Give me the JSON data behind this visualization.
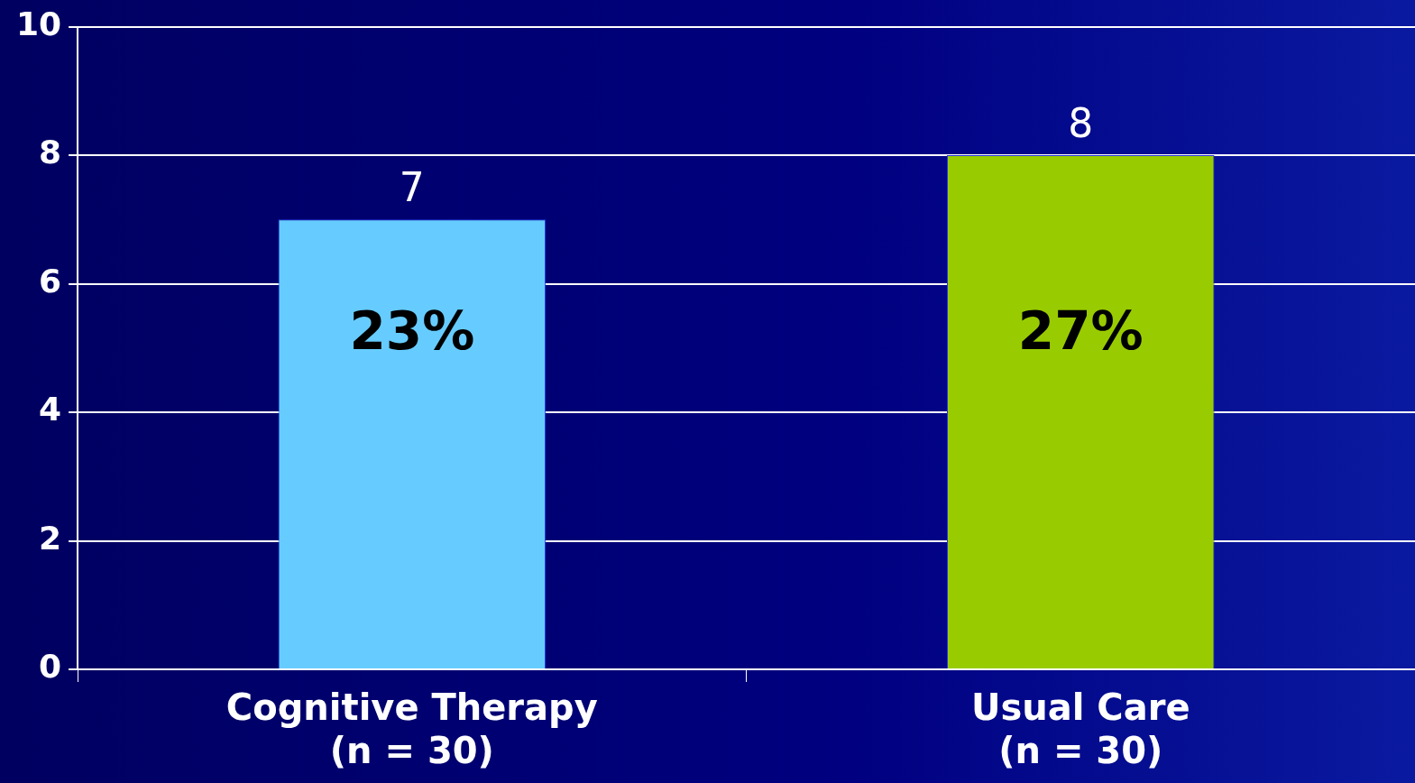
{
  "chart_data": {
    "type": "bar",
    "categories": [
      "Cognitive Therapy\n(n = 30)",
      "Usual Care\n(n = 30)"
    ],
    "values": [
      7,
      8
    ],
    "colors": [
      "#66ccff",
      "#99cc00"
    ],
    "ylim": [
      0,
      10
    ],
    "yticks": [
      0,
      2,
      4,
      6,
      8,
      10
    ],
    "grid": "y",
    "legend": false,
    "data_labels": true,
    "annotations": [
      "23%",
      "27%"
    ]
  }
}
